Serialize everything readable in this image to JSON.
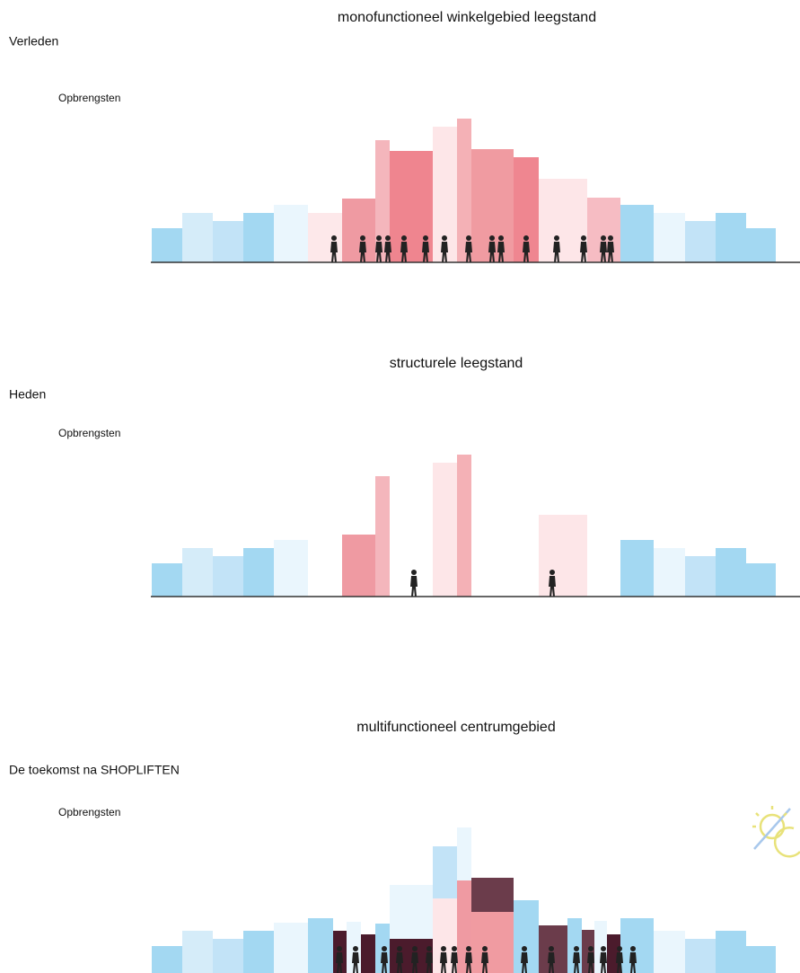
{
  "panels": [
    {
      "title": "monofunctioneel winkelgebied leegstand",
      "period": "Verleden",
      "axis_label": "Opbrengsten"
    },
    {
      "title": "structurele leegstand",
      "period": "Heden",
      "axis_label": "Opbrengsten"
    },
    {
      "title": "multifunctioneel centrumgebied",
      "period": "De toekomst na SHOPLIFTEN",
      "axis_label": "Opbrengsten"
    }
  ]
}
